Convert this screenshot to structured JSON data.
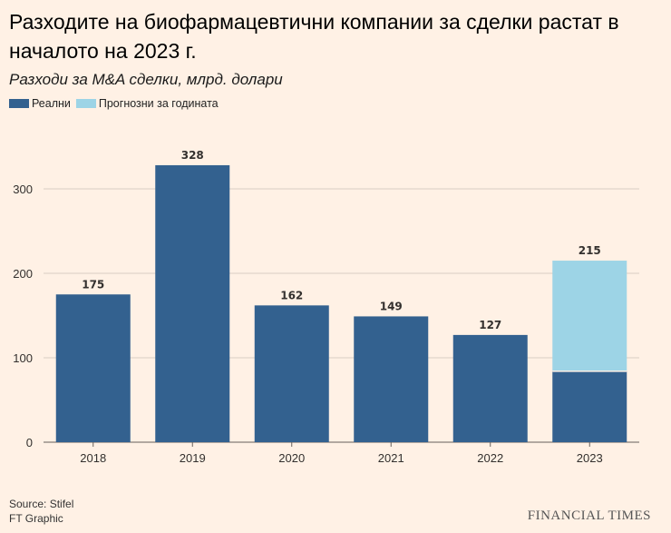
{
  "chart_data": {
    "type": "bar",
    "title": "Разходите на биофармацевтични компании за сделки растат в началото на 2023 г.",
    "subtitle": "Разходи за M&A сделки, млрд. долари",
    "categories": [
      "2018",
      "2019",
      "2020",
      "2021",
      "2022",
      "2023"
    ],
    "series": [
      {
        "name": "Реални",
        "values": [
          175,
          328,
          162,
          149,
          127,
          84
        ],
        "color": "#33618f"
      },
      {
        "name": "Прогнозни за годината",
        "values": [
          0,
          0,
          0,
          0,
          0,
          131
        ],
        "color": "#9dd4e6"
      }
    ],
    "data_labels": [
      "175",
      "328",
      "162",
      "149",
      "127",
      "215"
    ],
    "yticks": [
      0,
      100,
      200,
      300
    ],
    "ylim": [
      0,
      350
    ],
    "stacked": true,
    "grid": true,
    "legend": "top-left"
  },
  "footer": {
    "source": "Source: Stifel",
    "credit": "FT Graphic",
    "brand": "FINANCIAL TIMES"
  }
}
